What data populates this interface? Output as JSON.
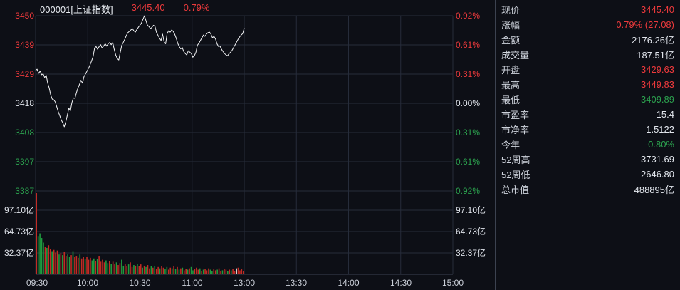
{
  "header": {
    "symbol": "000001[上证指数]",
    "price": "3445.40",
    "change_pct": "0.79%"
  },
  "colors": {
    "up": "#ee3a3c",
    "down": "#2ca24f",
    "flat": "#e2e6ed",
    "bar_up": "#c22b24",
    "bar_down": "#1e9b3e",
    "cursor": "#ffffff",
    "line": "#f5f6f8",
    "grid": "#262c3a",
    "axis": "#3a4152",
    "bg": "#0d0f16",
    "divider": "#3c4250"
  },
  "axes": {
    "left_price": [
      {
        "label": "3450",
        "tone": "up"
      },
      {
        "label": "3439",
        "tone": "up"
      },
      {
        "label": "3429",
        "tone": "up"
      },
      {
        "label": "3418",
        "tone": "flat"
      },
      {
        "label": "3408",
        "tone": "down"
      },
      {
        "label": "3397",
        "tone": "down"
      },
      {
        "label": "3387",
        "tone": "down"
      }
    ],
    "right_pct": [
      {
        "label": "0.92%",
        "tone": "up"
      },
      {
        "label": "0.61%",
        "tone": "up"
      },
      {
        "label": "0.31%",
        "tone": "up"
      },
      {
        "label": "0.00%",
        "tone": "flat"
      },
      {
        "label": "0.31%",
        "tone": "down"
      },
      {
        "label": "0.61%",
        "tone": "down"
      },
      {
        "label": "0.92%",
        "tone": "down"
      }
    ],
    "left_volume": [
      "97.10亿",
      "64.73亿",
      "32.37亿"
    ],
    "right_volume": [
      "97.10亿",
      "64.73亿",
      "32.37亿"
    ],
    "time": [
      "09:30",
      "10:00",
      "10:30",
      "11:00",
      "13:00",
      "13:30",
      "14:00",
      "14:30",
      "15:00"
    ]
  },
  "info_panel": {
    "rows": [
      {
        "label": "现价",
        "value": "3445.40",
        "tone": "up"
      },
      {
        "label": "涨幅",
        "value": "0.79% (27.08)",
        "tone": "up"
      },
      {
        "label": "金额",
        "value": "2176.26亿",
        "tone": "flat"
      },
      {
        "label": "成交量",
        "value": "187.51亿",
        "tone": "flat"
      },
      {
        "label": "开盘",
        "value": "3429.63",
        "tone": "up"
      },
      {
        "label": "最高",
        "value": "3449.83",
        "tone": "up"
      },
      {
        "label": "最低",
        "value": "3409.89",
        "tone": "down"
      },
      {
        "label": "市盈率",
        "value": "15.4",
        "tone": "flat"
      },
      {
        "label": "市净率",
        "value": "1.5122",
        "tone": "flat"
      },
      {
        "label": "今年",
        "value": "-0.80%",
        "tone": "down"
      },
      {
        "label": "52周高",
        "value": "3731.69",
        "tone": "flat"
      },
      {
        "label": "52周低",
        "value": "2646.80",
        "tone": "flat"
      },
      {
        "label": "总市值",
        "value": "488895亿",
        "tone": "flat"
      }
    ]
  },
  "chart_data": {
    "type": "line",
    "title": "000001[上证指数] 分时走势",
    "prev_close": 3418.32,
    "price_span_points": 31.51,
    "price_tick_labels": [
      3450,
      3439,
      3429,
      3418,
      3408,
      3397,
      3387
    ],
    "pct_tick_labels": [
      "0.92%",
      "0.61%",
      "0.31%",
      "0.00%",
      "-0.31%",
      "-0.61%",
      "-0.92%"
    ],
    "session_minutes": 240,
    "data_end_minute": 120,
    "time_ticks": [
      "09:30",
      "10:00",
      "10:30",
      "11:00",
      "13:00",
      "13:30",
      "14:00",
      "14:30",
      "15:00"
    ],
    "last_price": 3445.4,
    "open": 3429.63,
    "high": 3449.83,
    "low": 3409.89,
    "volume_tick_step_yi": 32.37,
    "volume_ticks_yi": [
      97.1,
      64.73,
      32.37
    ],
    "price_points": [
      3430.1,
      3430.6,
      3429.1,
      3429.9,
      3428.6,
      3428.9,
      3427.6,
      3428.4,
      3425.6,
      3423.8,
      3421.3,
      3419.8,
      3419.6,
      3418.8,
      3417.1,
      3415.3,
      3413.8,
      3412.3,
      3411.3,
      3409.9,
      3411.8,
      3414.1,
      3416.6,
      3415.6,
      3418.6,
      3420.3,
      3420.1,
      3422.1,
      3423.8,
      3425.1,
      3426.6,
      3425.6,
      3427.9,
      3428.9,
      3429.9,
      3430.9,
      3432.1,
      3433.6,
      3435.1,
      3438.2,
      3438.7,
      3437.7,
      3438.7,
      3439.4,
      3438.2,
      3438.9,
      3439.7,
      3438.9,
      3439.7,
      3440.2,
      3439.4,
      3440.2,
      3437.7,
      3435.7,
      3434.4,
      3433.9,
      3436.7,
      3439.2,
      3440.2,
      3441.4,
      3442.7,
      3443.7,
      3444.2,
      3444.7,
      3445.2,
      3444.4,
      3443.9,
      3444.9,
      3445.7,
      3446.4,
      3447.2,
      3448.5,
      3449.8,
      3448.0,
      3446.4,
      3445.9,
      3445.2,
      3445.7,
      3446.4,
      3445.9,
      3443.7,
      3442.7,
      3441.7,
      3440.9,
      3443.2,
      3440.4,
      3439.7,
      3443.4,
      3444.4,
      3443.9,
      3444.7,
      3444.2,
      3443.2,
      3441.7,
      3439.9,
      3438.7,
      3437.9,
      3438.4,
      3436.9,
      3436.2,
      3435.7,
      3437.2,
      3436.7,
      3436.2,
      3434.9,
      3435.4,
      3436.7,
      3439.2,
      3439.9,
      3440.9,
      3441.9,
      3442.9,
      3442.4,
      3443.2,
      3443.7,
      3443.9,
      3443.2,
      3441.9,
      3442.4,
      3441.4,
      3439.7,
      3438.7,
      3438.9,
      3437.7,
      3436.9,
      3436.2,
      3435.7,
      3435.4,
      3436.2,
      3436.7,
      3437.4,
      3438.4,
      3439.4,
      3440.4,
      3441.4,
      3442.2,
      3442.9,
      3443.4,
      3445.4
    ],
    "volume_bars_yi": [
      [
        123,
        "r"
      ],
      [
        58,
        "g"
      ],
      [
        62,
        "g"
      ],
      [
        55,
        "g"
      ],
      [
        48,
        "g"
      ],
      [
        42,
        "r"
      ],
      [
        40,
        "g"
      ],
      [
        44,
        "r"
      ],
      [
        38,
        "r"
      ],
      [
        35,
        "g"
      ],
      [
        37,
        "r"
      ],
      [
        33,
        "r"
      ],
      [
        36,
        "r"
      ],
      [
        30,
        "g"
      ],
      [
        32,
        "r"
      ],
      [
        29,
        "g"
      ],
      [
        34,
        "r"
      ],
      [
        28,
        "r"
      ],
      [
        30,
        "g"
      ],
      [
        27,
        "g"
      ],
      [
        29,
        "r"
      ],
      [
        35,
        "g"
      ],
      [
        26,
        "r"
      ],
      [
        28,
        "r"
      ],
      [
        25,
        "r"
      ],
      [
        30,
        "g"
      ],
      [
        24,
        "r"
      ],
      [
        26,
        "r"
      ],
      [
        23,
        "g"
      ],
      [
        27,
        "r"
      ],
      [
        22,
        "r"
      ],
      [
        25,
        "r"
      ],
      [
        21,
        "g"
      ],
      [
        24,
        "g"
      ],
      [
        20,
        "r"
      ],
      [
        23,
        "g"
      ],
      [
        28,
        "r"
      ],
      [
        19,
        "r"
      ],
      [
        22,
        "r"
      ],
      [
        18,
        "r"
      ],
      [
        21,
        "g"
      ],
      [
        17,
        "g"
      ],
      [
        20,
        "r"
      ],
      [
        16,
        "g"
      ],
      [
        19,
        "r"
      ],
      [
        15,
        "r"
      ],
      [
        18,
        "g"
      ],
      [
        14,
        "r"
      ],
      [
        17,
        "r"
      ],
      [
        22,
        "g"
      ],
      [
        13,
        "g"
      ],
      [
        16,
        "r"
      ],
      [
        12,
        "r"
      ],
      [
        15,
        "g"
      ],
      [
        18,
        "r"
      ],
      [
        11,
        "r"
      ],
      [
        14,
        "g"
      ],
      [
        13,
        "r"
      ],
      [
        16,
        "g"
      ],
      [
        12,
        "r"
      ],
      [
        15,
        "r"
      ],
      [
        10,
        "g"
      ],
      [
        13,
        "r"
      ],
      [
        11,
        "g"
      ],
      [
        14,
        "r"
      ],
      [
        9,
        "r"
      ],
      [
        12,
        "g"
      ],
      [
        10,
        "r"
      ],
      [
        13,
        "g"
      ],
      [
        8,
        "r"
      ],
      [
        11,
        "r"
      ],
      [
        9,
        "g"
      ],
      [
        12,
        "r"
      ],
      [
        10,
        "r"
      ],
      [
        8,
        "g"
      ],
      [
        11,
        "g"
      ],
      [
        7,
        "r"
      ],
      [
        10,
        "r"
      ],
      [
        9,
        "g"
      ],
      [
        12,
        "r"
      ],
      [
        8,
        "g"
      ],
      [
        11,
        "r"
      ],
      [
        7,
        "g"
      ],
      [
        9,
        "r"
      ],
      [
        10,
        "g"
      ],
      [
        6,
        "r"
      ],
      [
        8,
        "r"
      ],
      [
        7,
        "g"
      ],
      [
        9,
        "r"
      ],
      [
        11,
        "g"
      ],
      [
        6,
        "g"
      ],
      [
        8,
        "r"
      ],
      [
        10,
        "r"
      ],
      [
        7,
        "r"
      ],
      [
        9,
        "g"
      ],
      [
        5,
        "r"
      ],
      [
        7,
        "g"
      ],
      [
        8,
        "r"
      ],
      [
        6,
        "r"
      ],
      [
        9,
        "r"
      ],
      [
        7,
        "g"
      ],
      [
        5,
        "g"
      ],
      [
        8,
        "r"
      ],
      [
        6,
        "r"
      ],
      [
        7,
        "g"
      ],
      [
        9,
        "r"
      ],
      [
        5,
        "r"
      ],
      [
        6,
        "g"
      ],
      [
        8,
        "r"
      ],
      [
        7,
        "r"
      ],
      [
        5,
        "g"
      ],
      [
        7,
        "r"
      ],
      [
        6,
        "g"
      ],
      [
        8,
        "r"
      ],
      [
        5,
        "r"
      ],
      [
        9,
        "w"
      ],
      [
        10,
        "r"
      ],
      [
        6,
        "r"
      ],
      [
        8,
        "r"
      ],
      [
        5,
        "r"
      ]
    ]
  }
}
